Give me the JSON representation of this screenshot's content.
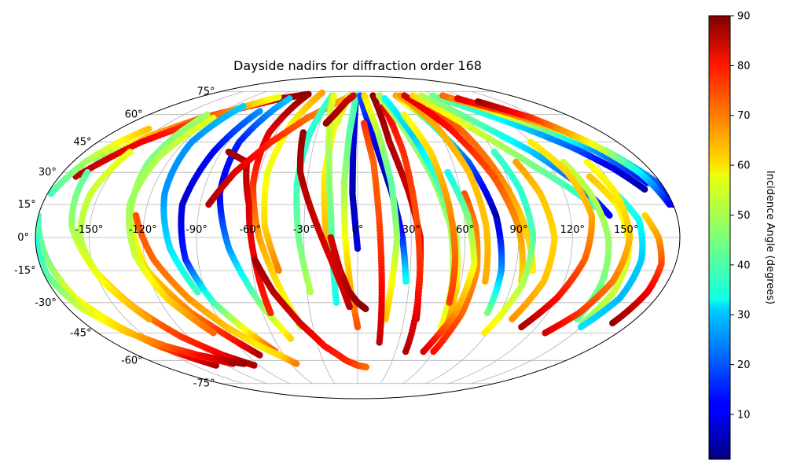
{
  "chart_data": {
    "type": "scatter",
    "projection": "mollweide",
    "title": "Dayside nadirs for diffraction order 168",
    "xlabel": "",
    "ylabel": "",
    "lon_ticks": [
      "-150°",
      "-120°",
      "-90°",
      "-60°",
      "-30°",
      "0°",
      "30°",
      "60°",
      "90°",
      "120°",
      "150°"
    ],
    "lat_ticks": [
      "75°",
      "60°",
      "45°",
      "30°",
      "15°",
      "0°",
      "-15°",
      "-30°",
      "-45°",
      "-60°",
      "-75°"
    ],
    "grid": true,
    "colorbar": {
      "label": "Incidence Angle (degrees)",
      "colormap": "jet",
      "range": [
        1,
        90
      ],
      "ticks": [
        "10",
        "20",
        "30",
        "40",
        "50",
        "60",
        "70",
        "80",
        "90"
      ]
    },
    "series": [
      {
        "lon": [
          -165,
          -150,
          -130,
          -105,
          -85,
          -60
        ],
        "lat": [
          35,
          48,
          58,
          65,
          70,
          73
        ],
        "inc": [
          45,
          62,
          72,
          80,
          86,
          89
        ]
      },
      {
        "lon": [
          -180,
          -175,
          -170,
          -160,
          -150,
          -140,
          -130
        ],
        "lat": [
          10,
          -10,
          -28,
          -42,
          -52,
          -58,
          -63
        ],
        "inc": [
          40,
          45,
          55,
          62,
          70,
          80,
          86
        ]
      },
      {
        "lon": [
          -170,
          -150,
          -125,
          -105,
          -90
        ],
        "lat": [
          28,
          45,
          58,
          66,
          71
        ],
        "inc": [
          85,
          80,
          72,
          62,
          55
        ]
      },
      {
        "lon": [
          -165,
          -160,
          -150,
          -138,
          -125,
          -110,
          -95
        ],
        "lat": [
          30,
          5,
          -15,
          -33,
          -47,
          -57,
          -63
        ],
        "inc": [
          42,
          48,
          58,
          66,
          74,
          80,
          86
        ]
      },
      {
        "lon": [
          -130,
          -132,
          -128,
          -120,
          -105,
          -88,
          -80
        ],
        "lat": [
          60,
          35,
          10,
          -15,
          -35,
          -50,
          -57
        ],
        "inc": [
          48,
          45,
          52,
          60,
          68,
          78,
          86
        ]
      },
      {
        "lon": [
          -88,
          -95,
          -100,
          -97,
          -88,
          -75,
          -65
        ],
        "lat": [
          62,
          40,
          15,
          -10,
          -30,
          -45,
          -55
        ],
        "inc": [
          25,
          12,
          8,
          15,
          40,
          58,
          72
        ]
      },
      {
        "lon": [
          -75,
          -82,
          -80,
          -72,
          -60,
          -48
        ],
        "lat": [
          70,
          45,
          20,
          -5,
          -30,
          -48
        ],
        "inc": [
          30,
          15,
          10,
          25,
          45,
          60
        ]
      },
      {
        "lon": [
          -60,
          -65,
          -62,
          -55,
          -45,
          -38
        ],
        "lat": [
          72,
          50,
          25,
          0,
          -25,
          -42
        ],
        "inc": [
          88,
          82,
          75,
          65,
          58,
          52
        ]
      },
      {
        "lon": [
          -45,
          -52,
          -55,
          -52,
          -45
        ],
        "lat": [
          74,
          55,
          30,
          5,
          -15
        ],
        "inc": [
          65,
          58,
          55,
          60,
          68
        ]
      },
      {
        "lon": [
          -85,
          -70,
          -62,
          -58,
          -55
        ],
        "lat": [
          40,
          35,
          15,
          -10,
          -35
        ],
        "inc": [
          88,
          85,
          82,
          80,
          76
        ]
      },
      {
        "lon": [
          -85,
          -75,
          -60,
          -42,
          -25,
          -8
        ],
        "lat": [
          15,
          30,
          45,
          58,
          66,
          72
        ],
        "inc": [
          86,
          82,
          76,
          70,
          66,
          62
        ]
      },
      {
        "lon": [
          -30,
          -35,
          -36,
          -33,
          -28
        ],
        "lat": [
          72,
          50,
          25,
          0,
          -25
        ],
        "inc": [
          40,
          38,
          40,
          44,
          50
        ]
      },
      {
        "lon": [
          -10,
          -18,
          -20,
          -18,
          -12
        ],
        "lat": [
          72,
          52,
          28,
          5,
          -18
        ],
        "inc": [
          50,
          55,
          58,
          62,
          66
        ]
      },
      {
        "lon": [
          -28,
          -22,
          -18,
          -15,
          -14,
          -13
        ],
        "lat": [
          72,
          55,
          35,
          10,
          -10,
          -30
        ],
        "inc": [
          55,
          52,
          48,
          44,
          40,
          36
        ]
      },
      {
        "lon": [
          -2,
          -3,
          -3,
          0
        ],
        "lat": [
          72,
          40,
          20,
          -5
        ],
        "inc": [
          12,
          8,
          5,
          10
        ]
      },
      {
        "lon": [
          -2,
          -6,
          -8,
          -7,
          -4,
          0
        ],
        "lat": [
          72,
          50,
          25,
          0,
          -25,
          -42
        ],
        "inc": [
          40,
          42,
          48,
          56,
          64,
          72
        ]
      },
      {
        "lon": [
          -58,
          -50,
          -38,
          -25,
          -10,
          0,
          8
        ],
        "lat": [
          -10,
          -25,
          -40,
          -52,
          -60,
          -63,
          -64
        ],
        "inc": [
          88,
          85,
          82,
          78,
          76,
          73,
          70
        ]
      },
      {
        "lon": [
          -125,
          -115,
          -102,
          -88,
          -74,
          -62,
          -55
        ],
        "lat": [
          10,
          -10,
          -28,
          -42,
          -52,
          -58,
          -62
        ],
        "inc": [
          72,
          70,
          66,
          62,
          58,
          60,
          68
        ]
      },
      {
        "lon": [
          -40,
          -35,
          -25,
          -15,
          -8,
          -5
        ],
        "lat": [
          50,
          30,
          10,
          -10,
          -25,
          -32
        ],
        "inc": [
          88,
          86,
          84,
          82,
          82,
          85
        ]
      },
      {
        "lon": [
          -25,
          -18,
          -12,
          -5
        ],
        "lat": [
          55,
          62,
          68,
          72
        ],
        "inc": [
          88,
          86,
          84,
          82
        ]
      },
      {
        "lon": [
          3,
          12,
          20,
          25,
          28
        ],
        "lat": [
          72,
          45,
          20,
          0,
          -20
        ],
        "inc": [
          20,
          10,
          5,
          15,
          35
        ]
      },
      {
        "lon": [
          -15,
          -10,
          -5,
          0,
          5
        ],
        "lat": [
          0,
          -15,
          -25,
          -30,
          -33
        ],
        "inc": [
          82,
          84,
          86,
          88,
          89
        ]
      },
      {
        "lon": [
          8,
          15,
          20,
          22,
          20,
          18
        ],
        "lat": [
          72,
          50,
          25,
          0,
          -20,
          -38
        ],
        "inc": [
          60,
          50,
          42,
          48,
          56,
          62
        ]
      },
      {
        "lon": [
          18,
          22,
          30,
          35,
          36,
          38
        ],
        "lat": [
          72,
          45,
          20,
          0,
          -25,
          -38
        ],
        "inc": [
          88,
          86,
          84,
          82,
          82,
          86
        ]
      },
      {
        "lon": [
          5,
          10,
          12,
          14,
          16
        ],
        "lat": [
          55,
          35,
          10,
          -20,
          -50
        ],
        "inc": [
          75,
          70,
          72,
          78,
          84
        ]
      },
      {
        "lon": [
          25,
          30,
          33,
          36,
          38
        ],
        "lat": [
          65,
          40,
          10,
          -20,
          -55
        ],
        "inc": [
          80,
          75,
          72,
          76,
          86
        ]
      },
      {
        "lon": [
          25,
          35,
          45,
          52,
          55,
          56
        ],
        "lat": [
          72,
          52,
          28,
          5,
          -20,
          -42
        ],
        "inc": [
          50,
          48,
          46,
          48,
          52,
          56
        ]
      },
      {
        "lon": [
          30,
          40,
          48,
          55,
          58,
          60
        ],
        "lat": [
          70,
          48,
          25,
          0,
          -25,
          -45
        ],
        "inc": [
          35,
          30,
          40,
          50,
          60,
          68
        ]
      },
      {
        "lon": [
          40,
          48,
          52,
          55,
          56
        ],
        "lat": [
          60,
          40,
          15,
          -10,
          -30
        ],
        "inc": [
          55,
          60,
          66,
          70,
          74
        ]
      },
      {
        "lon": [
          45,
          58,
          70,
          78,
          82,
          82
        ],
        "lat": [
          72,
          55,
          35,
          10,
          -15,
          -35
        ],
        "inc": [
          65,
          40,
          20,
          5,
          25,
          45
        ]
      },
      {
        "lon": [
          50,
          60,
          68,
          72,
          74
        ],
        "lat": [
          72,
          55,
          30,
          5,
          -20
        ],
        "inc": [
          66,
          64,
          62,
          62,
          64
        ]
      },
      {
        "lon": [
          70,
          78,
          85,
          92,
          100
        ],
        "lat": [
          65,
          50,
          30,
          10,
          -15
        ],
        "inc": [
          75,
          70,
          68,
          62,
          58
        ]
      },
      {
        "lon": [
          55,
          70,
          82,
          90,
          95
        ],
        "lat": [
          72,
          52,
          28,
          5,
          -20
        ],
        "inc": [
          82,
          78,
          72,
          66,
          60
        ]
      },
      {
        "lon": [
          65,
          80,
          95,
          110,
          125,
          138
        ],
        "lat": [
          72,
          58,
          45,
          33,
          22,
          12
        ],
        "inc": [
          60,
          56,
          50,
          45,
          40,
          36
        ]
      },
      {
        "lon": [
          75,
          95,
          115,
          130,
          142
        ],
        "lat": [
          72,
          55,
          40,
          25,
          10
        ],
        "inc": [
          50,
          42,
          30,
          20,
          12
        ]
      },
      {
        "lon": [
          88,
          108,
          128,
          145,
          158,
          168
        ],
        "lat": [
          72,
          62,
          52,
          42,
          32,
          22
        ],
        "inc": [
          45,
          38,
          30,
          20,
          10,
          5
        ]
      },
      {
        "lon": [
          100,
          120,
          140,
          158,
          172
        ],
        "lat": [
          72,
          63,
          52,
          40,
          25
        ],
        "inc": [
          70,
          60,
          45,
          25,
          12
        ]
      },
      {
        "lon": [
          110,
          130,
          150,
          165,
          178,
          180
        ],
        "lat": [
          70,
          62,
          52,
          40,
          25,
          15
        ],
        "inc": [
          82,
          72,
          60,
          40,
          20,
          8
        ]
      },
      {
        "lon": [
          125,
          145,
          160,
          172,
          178
        ],
        "lat": [
          68,
          58,
          45,
          30,
          15
        ],
        "inc": [
          88,
          75,
          58,
          35,
          12
        ]
      },
      {
        "lon": [
          130,
          135,
          140,
          142,
          142
        ],
        "lat": [
          35,
          20,
          0,
          -20,
          -38
        ],
        "inc": [
          52,
          50,
          48,
          45,
          42
        ]
      },
      {
        "lon": [
          140,
          148,
          152,
          152,
          148
        ],
        "lat": [
          28,
          15,
          -5,
          -25,
          -40
        ],
        "inc": [
          62,
          58,
          55,
          52,
          48
        ]
      },
      {
        "lon": [
          150,
          158,
          160,
          158,
          150
        ],
        "lat": [
          20,
          8,
          -10,
          -28,
          -42
        ],
        "inc": [
          40,
          35,
          30,
          28,
          32
        ]
      },
      {
        "lon": [
          145,
          150,
          152,
          148,
          140,
          130
        ],
        "lat": [
          35,
          20,
          0,
          -20,
          -35,
          -45
        ],
        "inc": [
          56,
          58,
          62,
          68,
          74,
          82
        ]
      },
      {
        "lon": [
          120,
          128,
          132,
          128,
          120,
          110
        ],
        "lat": [
          45,
          30,
          10,
          -10,
          -28,
          -42
        ],
        "inc": [
          58,
          60,
          64,
          70,
          78,
          86
        ]
      },
      {
        "lon": [
          162,
          168,
          172,
          172,
          168
        ],
        "lat": [
          10,
          0,
          -12,
          -25,
          -40
        ],
        "inc": [
          60,
          65,
          72,
          80,
          88
        ]
      },
      {
        "lon": [
          100,
          106,
          110,
          108,
          100
        ],
        "lat": [
          35,
          20,
          0,
          -20,
          -38
        ],
        "inc": [
          65,
          62,
          60,
          62,
          66
        ]
      },
      {
        "lon": [
          90,
          95,
          98,
          96,
          88
        ],
        "lat": [
          40,
          22,
          0,
          -22,
          -45
        ],
        "inc": [
          40,
          38,
          42,
          50,
          58
        ]
      },
      {
        "lon": [
          62,
          66,
          68,
          66,
          60
        ],
        "lat": [
          20,
          5,
          -15,
          -35,
          -55
        ],
        "inc": [
          72,
          68,
          66,
          70,
          78
        ]
      },
      {
        "lon": [
          55,
          62,
          66,
          62,
          52
        ],
        "lat": [
          30,
          10,
          -12,
          -35,
          -55
        ],
        "inc": [
          35,
          45,
          55,
          65,
          82
        ]
      },
      {
        "lon": [
          -150,
          -155,
          -155,
          -148,
          -135
        ],
        "lat": [
          40,
          20,
          0,
          -20,
          -38
        ],
        "inc": [
          55,
          52,
          50,
          56,
          65
        ]
      },
      {
        "lon": [
          -120,
          -128,
          -130,
          -125,
          -115,
          -100
        ],
        "lat": [
          58,
          38,
          15,
          -8,
          -28,
          -45
        ],
        "inc": [
          55,
          50,
          48,
          52,
          60,
          70
        ]
      },
      {
        "lon": [
          -110,
          -115,
          -112,
          -105,
          -95
        ],
        "lat": [
          65,
          45,
          20,
          -5,
          -25
        ],
        "inc": [
          30,
          25,
          25,
          32,
          40
        ]
      },
      {
        "lon": [
          -180,
          -178,
          -172,
          -160,
          -145,
          -128,
          -112
        ],
        "lat": [
          0,
          -18,
          -32,
          -44,
          -52,
          -58,
          -62
        ],
        "inc": [
          36,
          42,
          52,
          60,
          66,
          74,
          84
        ]
      },
      {
        "lon": [
          -165,
          -158,
          -145,
          -130,
          -115,
          -102
        ],
        "lat": [
          -35,
          -45,
          -52,
          -57,
          -60,
          -62
        ],
        "inc": [
          55,
          62,
          70,
          78,
          84,
          88
        ]
      },
      {
        "lon": [
          -178,
          -172,
          -165,
          -158
        ],
        "lat": [
          20,
          35,
          45,
          52
        ],
        "inc": [
          40,
          48,
          56,
          62
        ]
      }
    ]
  }
}
